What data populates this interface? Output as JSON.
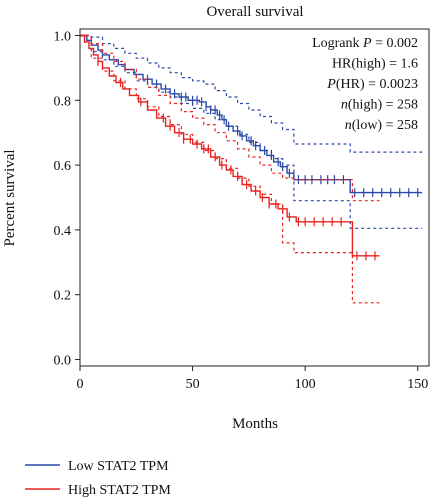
{
  "chart_data": {
    "type": "line",
    "title": "Overall survival",
    "xlabel": "Months",
    "ylabel": "Percent survival",
    "xlim": [
      0,
      155
    ],
    "ylim": [
      -0.02,
      1.02
    ],
    "x_ticks": [
      0,
      50,
      100,
      150
    ],
    "y_ticks": [
      0.0,
      0.2,
      0.4,
      0.6,
      0.8,
      1.0
    ],
    "y_tick_labels": [
      "0.0",
      "0.2",
      "0.4",
      "0.6",
      "0.8",
      "1.0"
    ],
    "grid": false,
    "legend": "bottom-left",
    "colors": {
      "low": "#2b4aa8",
      "high": "#e8231f"
    },
    "annotations": [
      {
        "prefix": "Logrank ",
        "ital": "P",
        "rest": " = 0.002"
      },
      {
        "prefix": "HR(high) = 1.6",
        "ital": "",
        "rest": ""
      },
      {
        "prefix": "",
        "ital": "P",
        "rest": "(HR) = 0.0023"
      },
      {
        "prefix": "",
        "ital": "n",
        "rest": "(high) = 258"
      },
      {
        "prefix": "",
        "ital": "n",
        "rest": "(low) = 258"
      }
    ],
    "series": [
      {
        "name": "Low STAT2 TPM",
        "key": "low",
        "points": [
          [
            0,
            1.0
          ],
          [
            3,
            0.985
          ],
          [
            5,
            0.97
          ],
          [
            8,
            0.955
          ],
          [
            10,
            0.94
          ],
          [
            13,
            0.925
          ],
          [
            17,
            0.91
          ],
          [
            20,
            0.895
          ],
          [
            24,
            0.88
          ],
          [
            28,
            0.865
          ],
          [
            32,
            0.85
          ],
          [
            36,
            0.835
          ],
          [
            40,
            0.82
          ],
          [
            44,
            0.81
          ],
          [
            48,
            0.8
          ],
          [
            53,
            0.795
          ],
          [
            56,
            0.78
          ],
          [
            58,
            0.77
          ],
          [
            61,
            0.755
          ],
          [
            63,
            0.74
          ],
          [
            65,
            0.72
          ],
          [
            68,
            0.705
          ],
          [
            71,
            0.69
          ],
          [
            74,
            0.675
          ],
          [
            77,
            0.66
          ],
          [
            80,
            0.645
          ],
          [
            83,
            0.63
          ],
          [
            86,
            0.61
          ],
          [
            89,
            0.595
          ],
          [
            92,
            0.575
          ],
          [
            95,
            0.555
          ],
          [
            120,
            0.555
          ],
          [
            120,
            0.515
          ],
          [
            152,
            0.515
          ]
        ],
        "ci_upper": [
          [
            0,
            1.0
          ],
          [
            5,
            0.995
          ],
          [
            10,
            0.975
          ],
          [
            15,
            0.96
          ],
          [
            20,
            0.945
          ],
          [
            25,
            0.93
          ],
          [
            30,
            0.915
          ],
          [
            35,
            0.9
          ],
          [
            40,
            0.885
          ],
          [
            45,
            0.87
          ],
          [
            50,
            0.86
          ],
          [
            55,
            0.85
          ],
          [
            60,
            0.83
          ],
          [
            65,
            0.81
          ],
          [
            70,
            0.79
          ],
          [
            75,
            0.77
          ],
          [
            80,
            0.75
          ],
          [
            85,
            0.73
          ],
          [
            90,
            0.71
          ],
          [
            95,
            0.665
          ],
          [
            120,
            0.665
          ],
          [
            120,
            0.64
          ],
          [
            152,
            0.64
          ]
        ],
        "ci_lower": [
          [
            0,
            1.0
          ],
          [
            5,
            0.95
          ],
          [
            10,
            0.925
          ],
          [
            15,
            0.905
          ],
          [
            20,
            0.885
          ],
          [
            25,
            0.86
          ],
          [
            30,
            0.84
          ],
          [
            35,
            0.825
          ],
          [
            40,
            0.81
          ],
          [
            45,
            0.79
          ],
          [
            50,
            0.775
          ],
          [
            55,
            0.76
          ],
          [
            60,
            0.74
          ],
          [
            65,
            0.72
          ],
          [
            70,
            0.695
          ],
          [
            75,
            0.67
          ],
          [
            80,
            0.645
          ],
          [
            85,
            0.62
          ],
          [
            90,
            0.6
          ],
          [
            95,
            0.49
          ],
          [
            120,
            0.49
          ],
          [
            120,
            0.405
          ],
          [
            152,
            0.405
          ]
        ],
        "censor_x": [
          30,
          34,
          38,
          42,
          45,
          47,
          50,
          52,
          54,
          56,
          58,
          60,
          62,
          64,
          66,
          70,
          72,
          76,
          78,
          82,
          85,
          88,
          90,
          93,
          97,
          100,
          103,
          107,
          110,
          113,
          117,
          122,
          126,
          130,
          134,
          138,
          142,
          146,
          150
        ]
      },
      {
        "name": "High STAT2 TPM",
        "key": "high",
        "points": [
          [
            0,
            1.0
          ],
          [
            2,
            0.98
          ],
          [
            4,
            0.96
          ],
          [
            6,
            0.94
          ],
          [
            8,
            0.92
          ],
          [
            10,
            0.9
          ],
          [
            13,
            0.875
          ],
          [
            16,
            0.855
          ],
          [
            19,
            0.835
          ],
          [
            22,
            0.815
          ],
          [
            26,
            0.795
          ],
          [
            30,
            0.77
          ],
          [
            34,
            0.745
          ],
          [
            38,
            0.72
          ],
          [
            42,
            0.7
          ],
          [
            46,
            0.68
          ],
          [
            50,
            0.665
          ],
          [
            54,
            0.65
          ],
          [
            58,
            0.625
          ],
          [
            62,
            0.6
          ],
          [
            65,
            0.585
          ],
          [
            68,
            0.565
          ],
          [
            72,
            0.54
          ],
          [
            76,
            0.52
          ],
          [
            80,
            0.5
          ],
          [
            84,
            0.48
          ],
          [
            88,
            0.465
          ],
          [
            92,
            0.44
          ],
          [
            96,
            0.425
          ],
          [
            120,
            0.425
          ],
          [
            121,
            0.32
          ],
          [
            133,
            0.32
          ]
        ],
        "ci_upper": [
          [
            0,
            1.0
          ],
          [
            5,
            0.975
          ],
          [
            10,
            0.945
          ],
          [
            15,
            0.92
          ],
          [
            20,
            0.895
          ],
          [
            25,
            0.865
          ],
          [
            30,
            0.84
          ],
          [
            35,
            0.815
          ],
          [
            40,
            0.79
          ],
          [
            45,
            0.765
          ],
          [
            50,
            0.745
          ],
          [
            55,
            0.725
          ],
          [
            60,
            0.7
          ],
          [
            65,
            0.675
          ],
          [
            70,
            0.65
          ],
          [
            75,
            0.625
          ],
          [
            80,
            0.6
          ],
          [
            85,
            0.575
          ],
          [
            90,
            0.56
          ],
          [
            95,
            0.555
          ],
          [
            120,
            0.555
          ],
          [
            121,
            0.49
          ],
          [
            133,
            0.49
          ]
        ],
        "ci_lower": [
          [
            0,
            1.0
          ],
          [
            5,
            0.93
          ],
          [
            10,
            0.89
          ],
          [
            15,
            0.86
          ],
          [
            20,
            0.835
          ],
          [
            25,
            0.805
          ],
          [
            30,
            0.78
          ],
          [
            35,
            0.75
          ],
          [
            40,
            0.725
          ],
          [
            45,
            0.695
          ],
          [
            50,
            0.67
          ],
          [
            55,
            0.645
          ],
          [
            60,
            0.62
          ],
          [
            65,
            0.59
          ],
          [
            70,
            0.56
          ],
          [
            75,
            0.535
          ],
          [
            80,
            0.51
          ],
          [
            85,
            0.48
          ],
          [
            90,
            0.36
          ],
          [
            95,
            0.33
          ],
          [
            120,
            0.33
          ],
          [
            121,
            0.175
          ],
          [
            133,
            0.175
          ]
        ],
        "censor_x": [
          8,
          18,
          27,
          37,
          40,
          44,
          46,
          49,
          52,
          55,
          57,
          60,
          63,
          67,
          70,
          74,
          78,
          81,
          84,
          87,
          90,
          93,
          97,
          100,
          104,
          108,
          112,
          116,
          123,
          127,
          131
        ]
      }
    ]
  }
}
